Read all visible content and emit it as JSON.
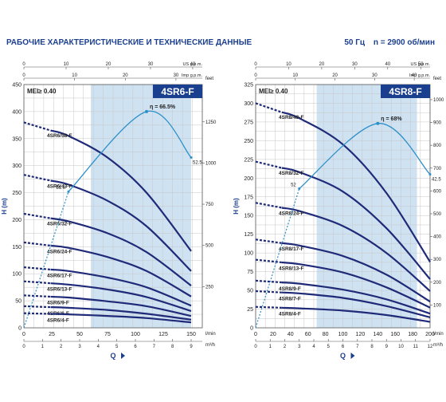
{
  "header": {
    "title": "РАБОЧИЕ ХАРАКТЕРИСТИЧЕСКИЕ И ТЕХНИЧЕСКИЕ ДАННЫЕ",
    "frequency": "50 Гц",
    "speed": "n = 2900 об/мин"
  },
  "colors": {
    "curve": "#1f2a78",
    "efficiency": "#2c8fc9",
    "band": "#cfe2f1",
    "badge": "#1b3f8f",
    "grid": "#c7c7c7"
  },
  "chart_data": [
    {
      "type": "line",
      "title": "4SR6-F",
      "mei": "MEI≥ 0.40",
      "xlabel": "Q",
      "ylabel": "H (m)",
      "x_unit": "l/min",
      "x2_unit": "m³/h",
      "top1_unit": "US g.p.m.",
      "top2_unit": "Imp g.p.m.",
      "right_unit": "feet",
      "xlim": [
        0,
        160
      ],
      "ylim": [
        0,
        450
      ],
      "x_ticks": [
        0,
        25,
        50,
        75,
        100,
        125,
        150
      ],
      "x2_ticks": [
        0,
        1,
        2,
        3,
        4,
        5,
        6,
        7,
        8,
        9
      ],
      "top1_ticks": [
        0,
        10,
        20,
        30,
        40
      ],
      "top2_ticks": [
        0,
        10,
        20,
        30
      ],
      "right_ticks": [
        250,
        500,
        750,
        1000,
        1250
      ],
      "y_ticks": [
        0,
        50,
        100,
        150,
        200,
        250,
        300,
        350,
        400,
        450
      ],
      "band": [
        60,
        150
      ],
      "efficiency": {
        "label": "η = 66.5%",
        "left_label": "51.6",
        "right_label": "52.5",
        "x": [
          40,
          110,
          150
        ],
        "y": [
          252,
          400,
          315
        ]
      },
      "series": [
        {
          "name": "4SR6/58-F",
          "x": [
            0,
            40,
            75,
            110,
            150
          ],
          "y": [
            380,
            355,
            315,
            250,
            142
          ]
        },
        {
          "name": "4SR6/43-F",
          "x": [
            0,
            40,
            75,
            110,
            150
          ],
          "y": [
            283,
            265,
            235,
            188,
            105
          ]
        },
        {
          "name": "4SR6/32-F",
          "x": [
            0,
            40,
            75,
            110,
            150
          ],
          "y": [
            211,
            197,
            175,
            140,
            78
          ]
        },
        {
          "name": "4SR6/24-F",
          "x": [
            0,
            40,
            75,
            110,
            150
          ],
          "y": [
            158,
            148,
            131,
            105,
            58
          ]
        },
        {
          "name": "4SR6/17-F",
          "x": [
            0,
            40,
            75,
            110,
            150
          ],
          "y": [
            112,
            105,
            93,
            75,
            41
          ]
        },
        {
          "name": "4SR6/13-F",
          "x": [
            0,
            40,
            75,
            110,
            150
          ],
          "y": [
            86,
            80,
            71,
            57,
            31
          ]
        },
        {
          "name": "4SR6/9-F",
          "x": [
            0,
            40,
            75,
            110,
            150
          ],
          "y": [
            60,
            56,
            49,
            40,
            22
          ]
        },
        {
          "name": "4SR6/6-F",
          "x": [
            0,
            40,
            75,
            110,
            150
          ],
          "y": [
            40,
            37,
            33,
            26,
            15
          ]
        },
        {
          "name": "4SR6/4-F",
          "x": [
            0,
            40,
            75,
            110,
            150
          ],
          "y": [
            27,
            25,
            22,
            18,
            10
          ]
        }
      ]
    },
    {
      "type": "line",
      "title": "4SR8-F",
      "mei": "MEI≥ 0.40",
      "xlabel": "Q",
      "ylabel": "H (m)",
      "x_unit": "l/min",
      "x2_unit": "m³/h",
      "top1_unit": "US g.p.m.",
      "top2_unit": "Imp g.p.m.",
      "right_unit": "feet",
      "xlim": [
        0,
        200
      ],
      "ylim": [
        0,
        325
      ],
      "x_ticks": [
        0,
        20,
        40,
        60,
        80,
        100,
        120,
        140,
        160,
        180,
        200
      ],
      "x2_ticks": [
        0,
        1,
        2,
        3,
        4,
        5,
        6,
        7,
        8,
        9,
        10,
        11,
        12
      ],
      "top1_ticks": [
        0,
        10,
        20,
        30,
        40,
        50
      ],
      "top2_ticks": [
        0,
        10,
        20,
        30,
        40
      ],
      "right_ticks": [
        100,
        200,
        300,
        400,
        500,
        600,
        700,
        800,
        900,
        1000
      ],
      "y_ticks": [
        0,
        25,
        50,
        75,
        100,
        125,
        150,
        175,
        200,
        225,
        250,
        275,
        300,
        325
      ],
      "band": [
        70,
        185
      ],
      "efficiency": {
        "label": "η = 68%",
        "left_label": "52",
        "right_label": "42.5",
        "x": [
          50,
          140,
          200
        ],
        "y": [
          186,
          273,
          205
        ]
      },
      "series": [
        {
          "name": "4SR8/43-F",
          "x": [
            0,
            50,
            100,
            150,
            200
          ],
          "y": [
            300,
            280,
            245,
            180,
            88
          ]
        },
        {
          "name": "4SR8/32-F",
          "x": [
            0,
            50,
            100,
            150,
            200
          ],
          "y": [
            222,
            208,
            182,
            133,
            65
          ]
        },
        {
          "name": "4SR8/24-F",
          "x": [
            0,
            50,
            100,
            150,
            200
          ],
          "y": [
            167,
            156,
            136,
            100,
            49
          ]
        },
        {
          "name": "4SR8/17-F",
          "x": [
            0,
            50,
            100,
            150,
            200
          ],
          "y": [
            118,
            110,
            96,
            71,
            35
          ]
        },
        {
          "name": "4SR8/13-F",
          "x": [
            0,
            50,
            100,
            150,
            200
          ],
          "y": [
            91,
            85,
            74,
            54,
            27
          ]
        },
        {
          "name": "4SR8/9-F",
          "x": [
            0,
            50,
            100,
            150,
            200
          ],
          "y": [
            63,
            59,
            51,
            38,
            19
          ]
        },
        {
          "name": "4SR8/7-F",
          "x": [
            0,
            50,
            100,
            150,
            200
          ],
          "y": [
            49,
            46,
            40,
            29,
            14
          ]
        },
        {
          "name": "4SR8/4-F",
          "x": [
            0,
            50,
            100,
            150,
            200
          ],
          "y": [
            28,
            26,
            23,
            17,
            8
          ]
        }
      ]
    }
  ]
}
